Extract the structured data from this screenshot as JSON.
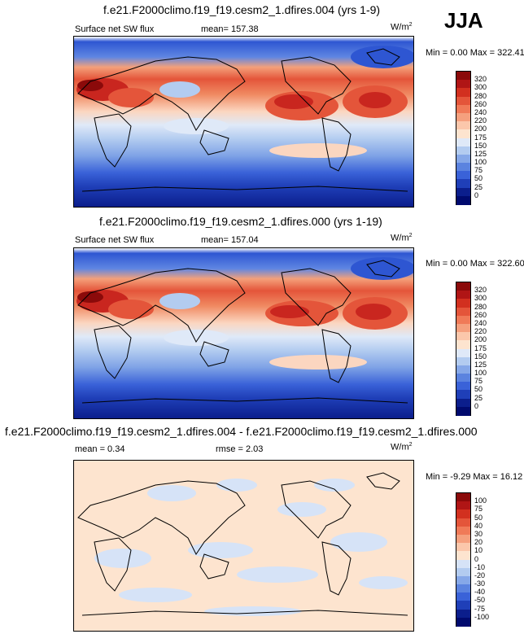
{
  "season": "JJA",
  "colors": {
    "deep_blue": "#0b1e8c",
    "blue": "#3a62d8",
    "light_blue": "#aec8f0",
    "cream": "#fde4cf",
    "orange": "#f0825a",
    "red": "#c9261f",
    "dark_red": "#8b0a0a"
  },
  "panels": [
    {
      "title": "f.e21.F2000climo.f19_f19.cesm2_1.dfires.004 (yrs 1-9)",
      "left_label": "Surface net SW flux",
      "center_label": "mean= 157.38",
      "units": "W/m",
      "units_exp": "2",
      "min_label": "Min =",
      "min_value": "0.00",
      "max_label": "Max =",
      "max_value": "322.41",
      "colorbar_levels": [
        "320",
        "300",
        "280",
        "260",
        "240",
        "220",
        "200",
        "175",
        "150",
        "125",
        "100",
        "75",
        "50",
        "25",
        "0"
      ]
    },
    {
      "title": "f.e21.F2000climo.f19_f19.cesm2_1.dfires.000 (yrs 1-19)",
      "left_label": "Surface net SW flux",
      "center_label": "mean= 157.04",
      "units": "W/m",
      "units_exp": "2",
      "min_label": "Min =",
      "min_value": "0.00",
      "max_label": "Max =",
      "max_value": "322.60",
      "colorbar_levels": [
        "320",
        "300",
        "280",
        "260",
        "240",
        "220",
        "200",
        "175",
        "150",
        "125",
        "100",
        "75",
        "50",
        "25",
        "0"
      ]
    },
    {
      "title": "f.e21.F2000climo.f19_f19.cesm2_1.dfires.004 - f.e21.F2000climo.f19_f19.cesm2_1.dfires.000",
      "left_label": "mean =   0.34",
      "center_label": "rmse =   2.03",
      "units": "W/m",
      "units_exp": "2",
      "min_label": "Min =",
      "min_value": "-9.29",
      "max_label": "Max =",
      "max_value": "16.12",
      "colorbar_levels": [
        "100",
        "75",
        "50",
        "40",
        "30",
        "20",
        "10",
        "0",
        "-10",
        "-20",
        "-30",
        "-40",
        "-50",
        "-75",
        "-100"
      ]
    }
  ]
}
